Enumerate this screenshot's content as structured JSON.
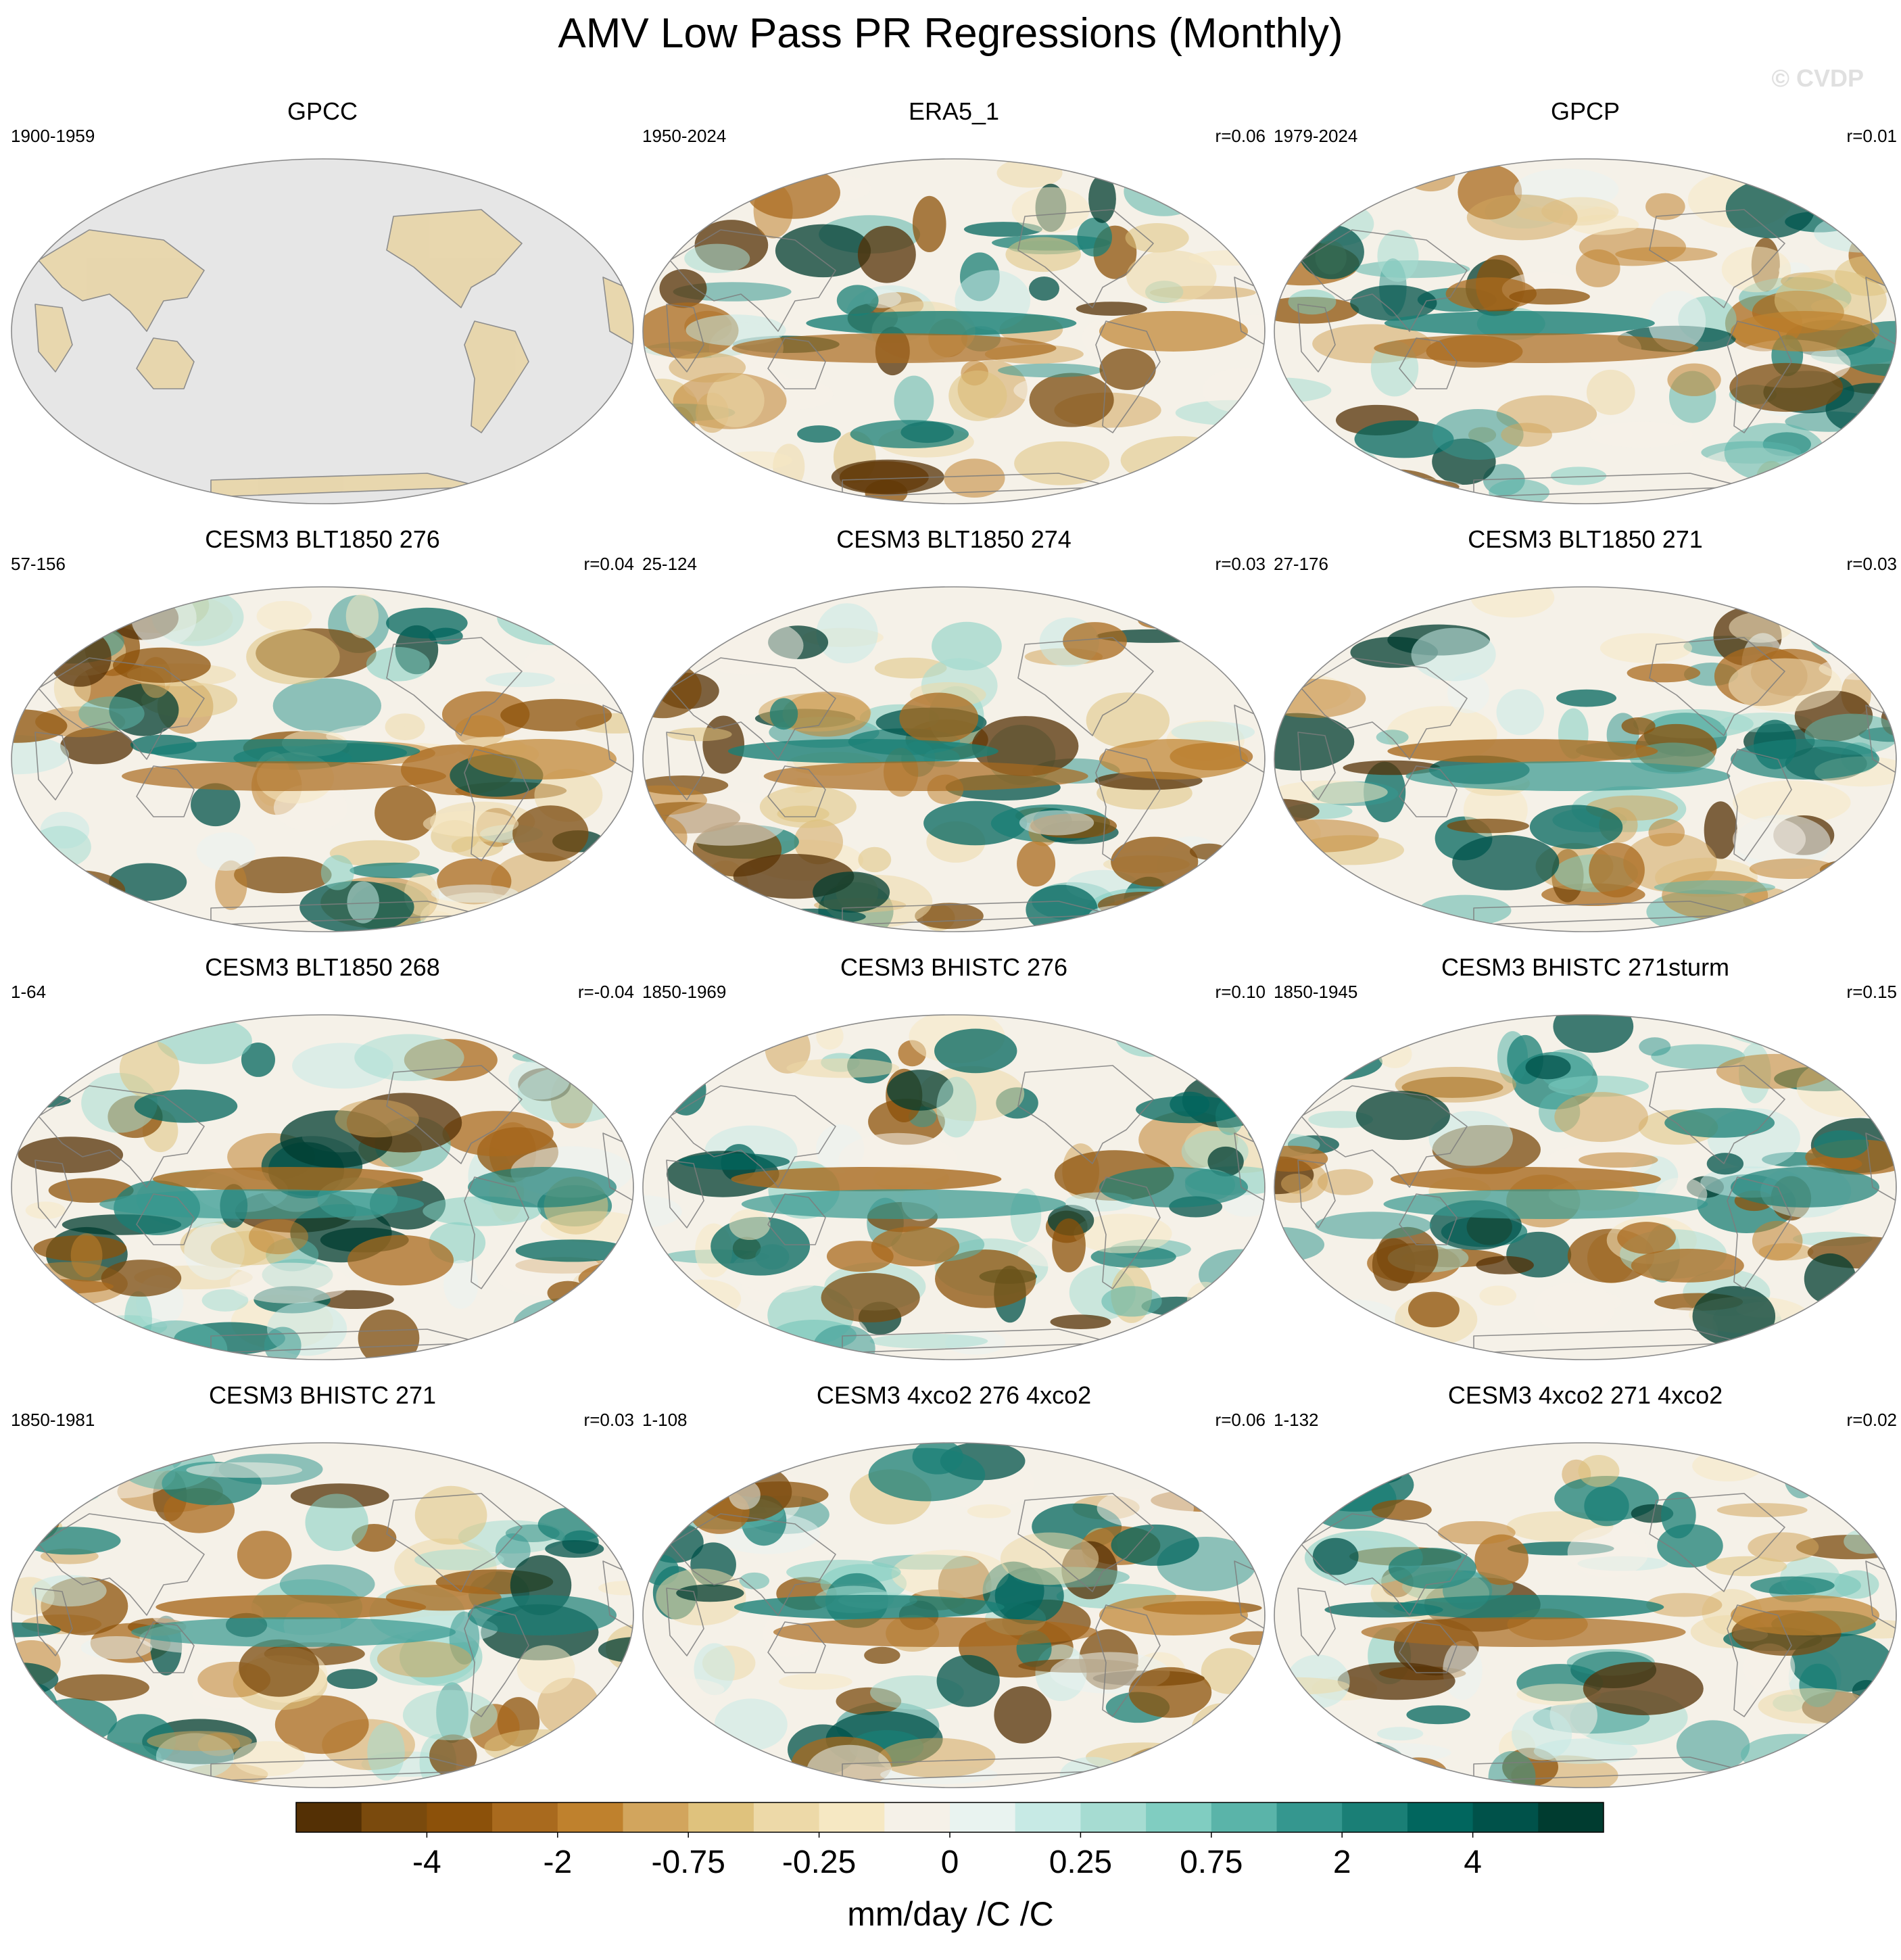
{
  "title": "AMV Low Pass PR Regressions (Monthly)",
  "watermark": "© CVDP",
  "panels": [
    {
      "name": "GPCC",
      "period": "1900-1959",
      "corr": "",
      "bg": "gpcc"
    },
    {
      "name": "ERA5_1",
      "period": "1950-2024",
      "corr": "r=0.06",
      "bg": "field"
    },
    {
      "name": "GPCP",
      "period": "1979-2024",
      "corr": "r=0.01",
      "bg": "field"
    },
    {
      "name": "CESM3 BLT1850 276",
      "period": "57-156",
      "corr": "r=0.04",
      "bg": "field"
    },
    {
      "name": "CESM3 BLT1850 274",
      "period": "25-124",
      "corr": "r=0.03",
      "bg": "field"
    },
    {
      "name": "CESM3 BLT1850 271",
      "period": "27-176",
      "corr": "r=0.03",
      "bg": "field"
    },
    {
      "name": "CESM3 BLT1850 268",
      "period": "1-64",
      "corr": "r=-0.04",
      "bg": "field"
    },
    {
      "name": "CESM3 BHISTC 276",
      "period": "1850-1969",
      "corr": "r=0.10",
      "bg": "field"
    },
    {
      "name": "CESM3 BHISTC 271sturm",
      "period": "1850-1945",
      "corr": "r=0.15",
      "bg": "field"
    },
    {
      "name": "CESM3 BHISTC 271",
      "period": "1850-1981",
      "corr": "r=0.03",
      "bg": "field"
    },
    {
      "name": "CESM3 4xco2 276 4xco2",
      "period": "1-108",
      "corr": "r=0.06",
      "bg": "field"
    },
    {
      "name": "CESM3 4xco2 271 4xco2",
      "period": "1-132",
      "corr": "r=0.02",
      "bg": "field"
    }
  ],
  "colorbar": {
    "colors": [
      "#543005",
      "#7a4a0d",
      "#8c510a",
      "#a96a1e",
      "#bf812d",
      "#d2a55d",
      "#dfc27d",
      "#edd9a8",
      "#f6e8c3",
      "#f5f1e8",
      "#e9f3f0",
      "#c7eae5",
      "#a6dcd2",
      "#80cdc1",
      "#5ab4a9",
      "#35978f",
      "#1a7f76",
      "#01665e",
      "#00524a",
      "#003c30"
    ],
    "tick_labels": [
      "-4",
      "-2",
      "-0.75",
      "-0.25",
      "0",
      "0.25",
      "0.75",
      "2",
      "4"
    ],
    "units": "mm/day /C /C"
  },
  "palette": {
    "land_mask": "#e6e6e6",
    "coast": "#7d7d7d",
    "border": "#8a8a8a",
    "neutral": "#f5f1e8"
  }
}
